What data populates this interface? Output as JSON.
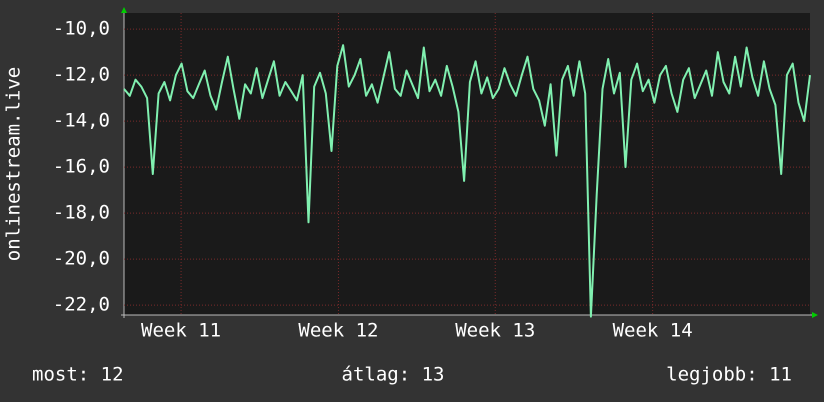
{
  "chart_data": {
    "type": "line",
    "ylabel": "onlinestream.live",
    "series": [
      {
        "name": "onlinestream.live",
        "color": "#80f0b0",
        "values": [
          -12.6,
          -12.9,
          -12.2,
          -12.5,
          -13.0,
          -16.3,
          -12.8,
          -12.3,
          -13.1,
          -12.0,
          -11.5,
          -12.7,
          -13.0,
          -12.4,
          -11.8,
          -12.9,
          -13.5,
          -12.3,
          -11.2,
          -12.6,
          -13.9,
          -12.4,
          -12.8,
          -11.7,
          -13.0,
          -12.2,
          -11.4,
          -12.9,
          -12.3,
          -12.7,
          -13.1,
          -12.0,
          -18.4,
          -12.5,
          -11.9,
          -12.8,
          -15.3,
          -11.6,
          -10.7,
          -12.5,
          -12.0,
          -11.3,
          -12.9,
          -12.4,
          -13.2,
          -12.1,
          -11.0,
          -12.6,
          -12.9,
          -11.8,
          -12.4,
          -13.0,
          -10.8,
          -12.7,
          -12.2,
          -12.9,
          -11.6,
          -12.5,
          -13.6,
          -16.6,
          -12.3,
          -11.4,
          -12.8,
          -12.1,
          -13.0,
          -12.6,
          -11.7,
          -12.4,
          -12.9,
          -12.0,
          -11.2,
          -12.6,
          -13.1,
          -14.2,
          -12.4,
          -15.5,
          -12.2,
          -11.6,
          -12.9,
          -11.4,
          -12.8,
          -22.5,
          -17.2,
          -12.6,
          -11.3,
          -12.8,
          -11.9,
          -16.0,
          -12.2,
          -11.5,
          -12.7,
          -12.2,
          -13.2,
          -12.0,
          -11.6,
          -12.8,
          -13.6,
          -12.2,
          -11.7,
          -13.0,
          -12.4,
          -11.8,
          -12.9,
          -11.0,
          -12.3,
          -12.8,
          -11.2,
          -12.5,
          -10.8,
          -12.1,
          -12.9,
          -11.4,
          -12.6,
          -13.3,
          -16.3,
          -12.0,
          -11.5,
          -13.2,
          -14.0,
          -12.0
        ]
      }
    ],
    "xlim": [
      0,
      119
    ],
    "xticks": [
      {
        "value": 9.9,
        "label": "Week 11"
      },
      {
        "value": 37.2,
        "label": "Week 12"
      },
      {
        "value": 64.4,
        "label": "Week 13"
      },
      {
        "value": 91.7,
        "label": "Week 14"
      }
    ],
    "ylim": [
      -22.43,
      -9.3
    ],
    "yticks": [
      {
        "value": -10,
        "label": "-10,0"
      },
      {
        "value": -12,
        "label": "-12,0"
      },
      {
        "value": -14,
        "label": "-14,0"
      },
      {
        "value": -16,
        "label": "-16,0"
      },
      {
        "value": -18,
        "label": "-18,0"
      },
      {
        "value": -20,
        "label": "-20,0"
      },
      {
        "value": -22,
        "label": "-22,0"
      }
    ],
    "grid": true,
    "legend": [
      "most: 12",
      "átlag: 13",
      "legjobb: 11"
    ]
  }
}
